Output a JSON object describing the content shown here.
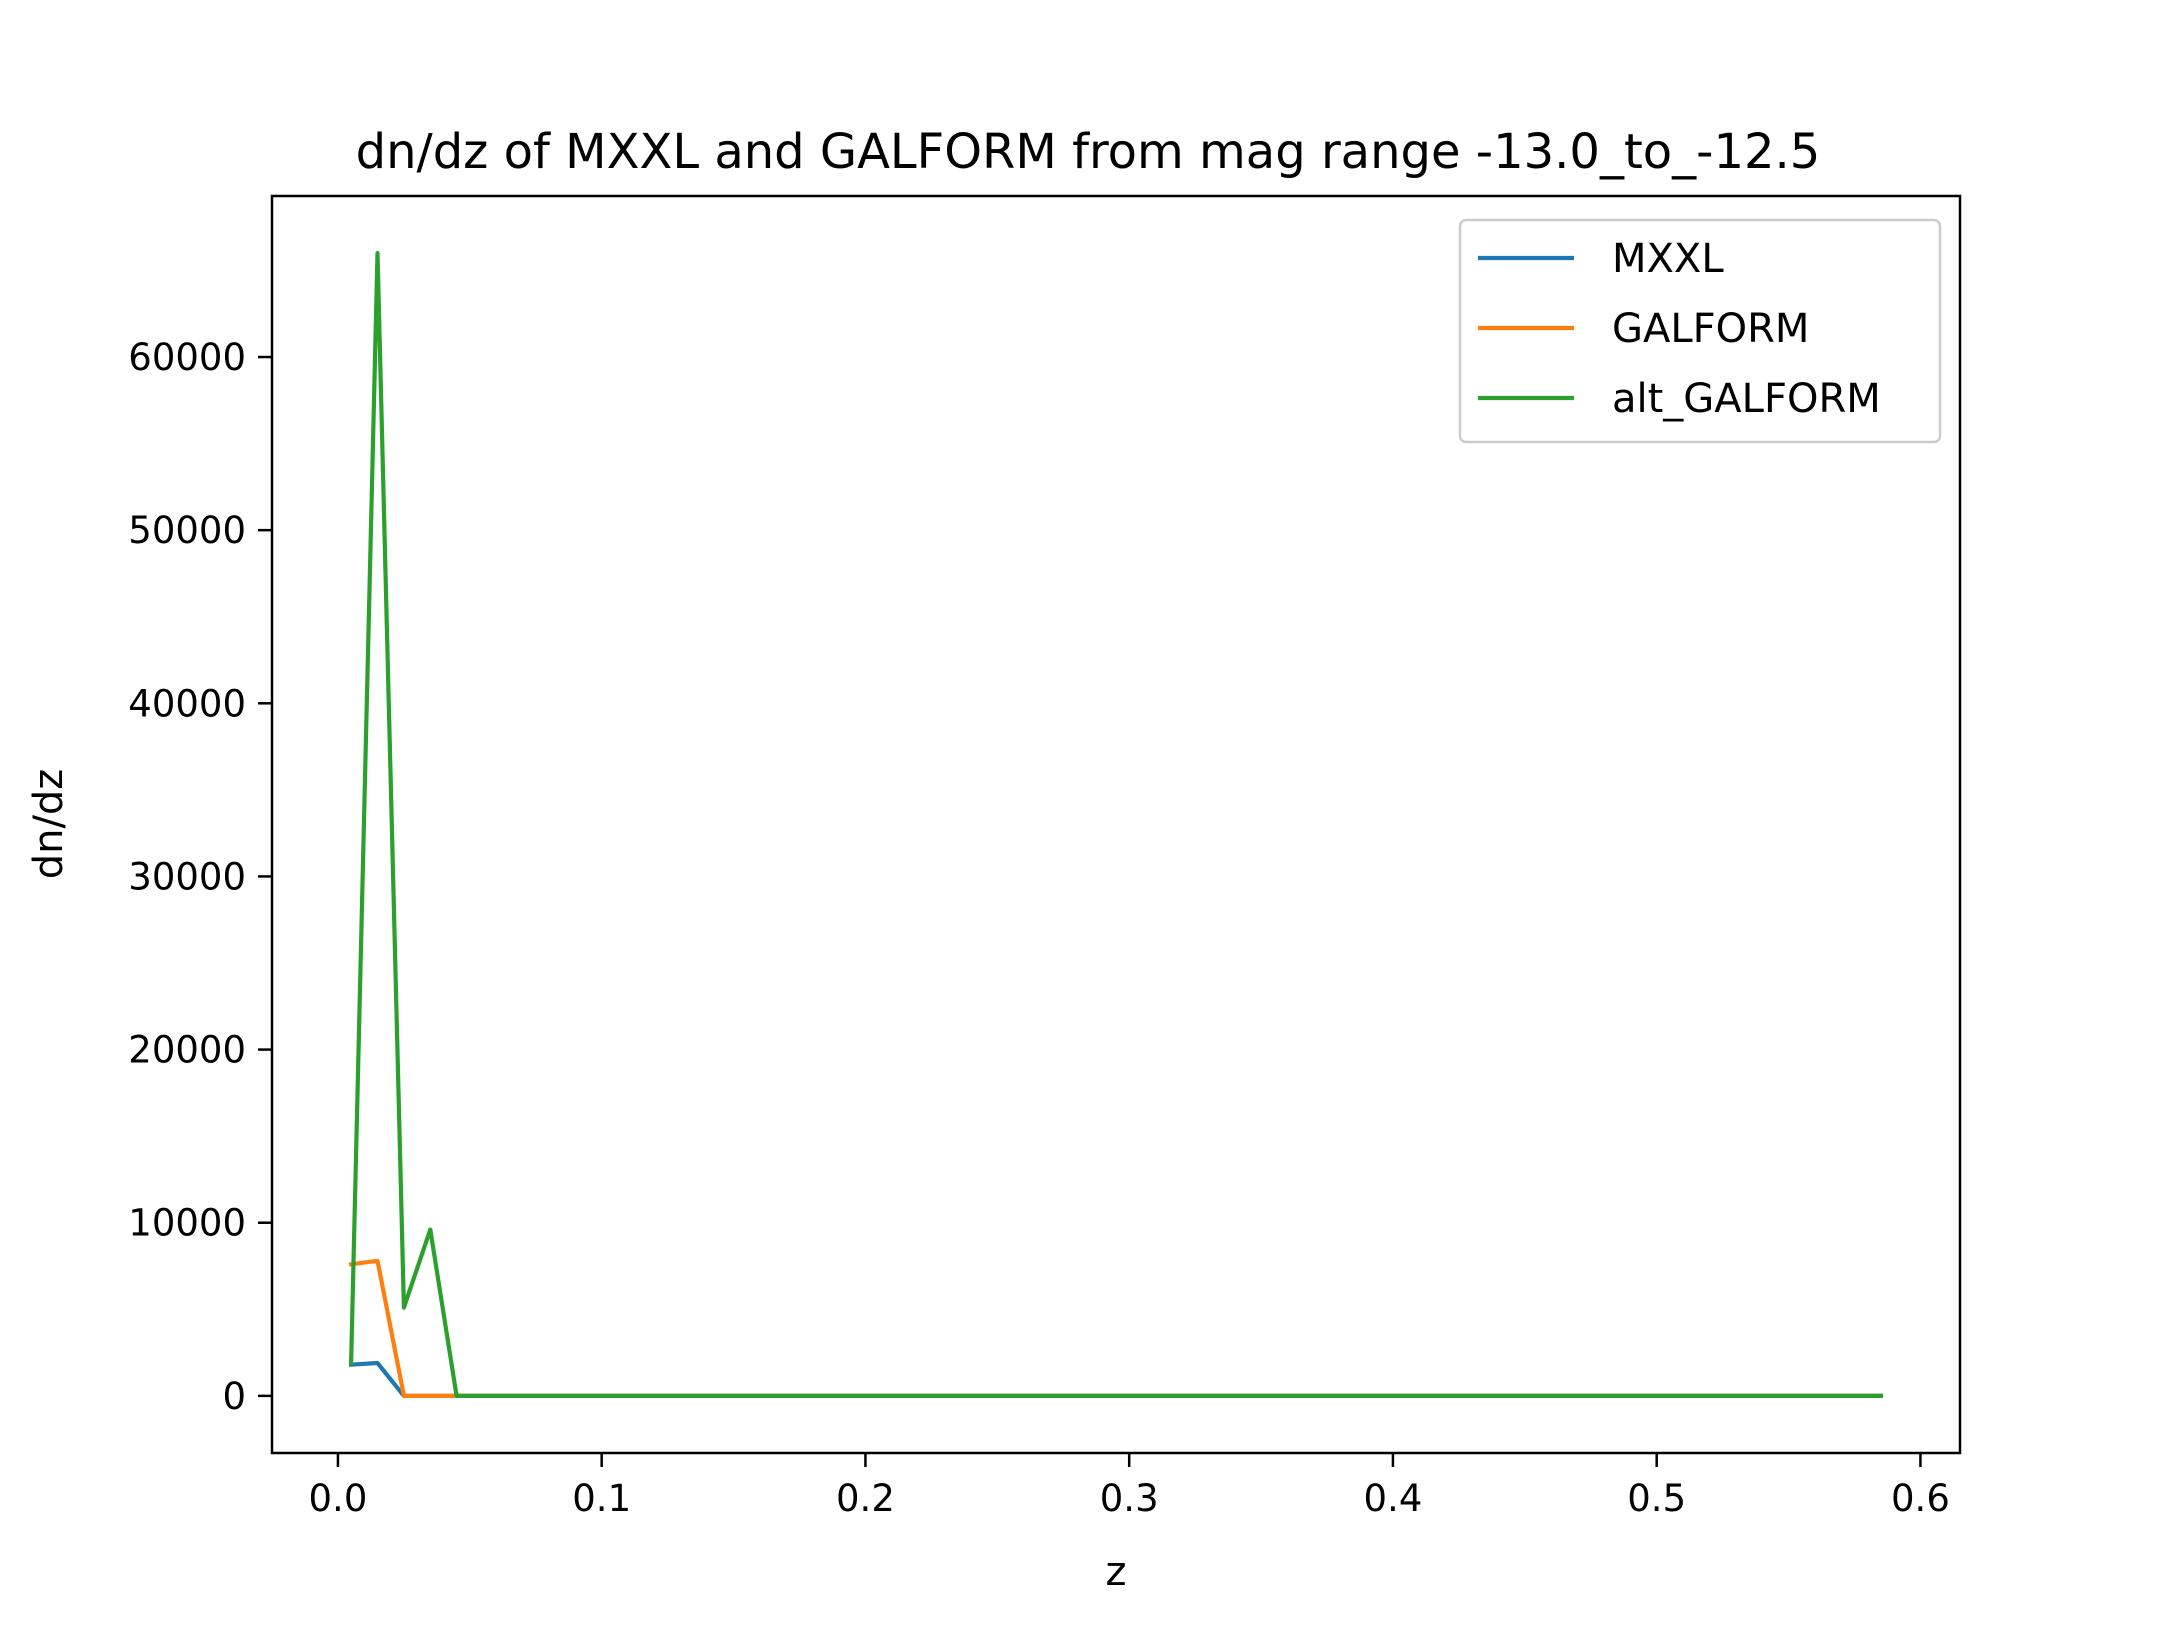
{
  "chart_data": {
    "type": "line",
    "title": "dn/dz of MXXL and GALFORM from mag range -13.0_to_-12.5",
    "xlabel": "z",
    "ylabel": "dn/dz",
    "xlim": [
      -0.025,
      0.615
    ],
    "ylim": [
      -3300,
      69300
    ],
    "xticks": [
      0.0,
      0.1,
      0.2,
      0.3,
      0.4,
      0.5,
      0.6
    ],
    "xtick_labels": [
      "0.0",
      "0.1",
      "0.2",
      "0.3",
      "0.4",
      "0.5",
      "0.6"
    ],
    "yticks": [
      0,
      10000,
      20000,
      30000,
      40000,
      50000,
      60000
    ],
    "ytick_labels": [
      "0",
      "10000",
      "20000",
      "30000",
      "40000",
      "50000",
      "60000"
    ],
    "grid": false,
    "legend_position": "upper right",
    "x": [
      0.005,
      0.015,
      0.025,
      0.035,
      0.045,
      0.055,
      0.585
    ],
    "series": [
      {
        "name": "MXXL",
        "color": "#1f77b4",
        "values": [
          1800,
          1900,
          0,
          0,
          0,
          0,
          0
        ]
      },
      {
        "name": "GALFORM",
        "color": "#ff7f0e",
        "values": [
          7600,
          7800,
          0,
          0,
          0,
          0,
          0
        ]
      },
      {
        "name": "alt_GALFORM",
        "color": "#2ca02c",
        "values": [
          1900,
          66000,
          5100,
          9600,
          0,
          0,
          0
        ]
      }
    ]
  }
}
